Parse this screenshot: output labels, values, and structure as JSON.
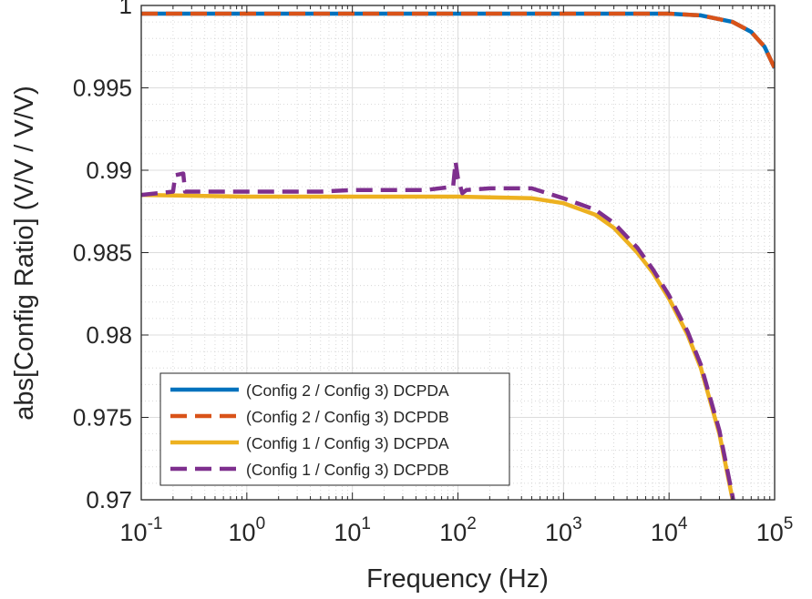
{
  "chart_data": {
    "type": "line",
    "title": "",
    "xlabel": "Frequency (Hz)",
    "ylabel": "abs[Config Ratio] (V/V / V/V)",
    "xscale": "log",
    "xlim": [
      0.1,
      100000
    ],
    "ylim": [
      0.97,
      1.0
    ],
    "grid": "on (major and minor)",
    "legend_position": "bottom-left",
    "x_ticks": [
      {
        "base": "10",
        "exp": "-1"
      },
      {
        "base": "10",
        "exp": "0"
      },
      {
        "base": "10",
        "exp": "1"
      },
      {
        "base": "10",
        "exp": "2"
      },
      {
        "base": "10",
        "exp": "3"
      },
      {
        "base": "10",
        "exp": "4"
      },
      {
        "base": "10",
        "exp": "5"
      }
    ],
    "y_ticks": [
      "0.97",
      "0.975",
      "0.98",
      "0.985",
      "0.99",
      "0.995",
      "1"
    ],
    "series": [
      {
        "name": "(Config 2 / Config 3) DCPDA",
        "color": "#0072BD",
        "dash": "solid",
        "x": [
          0.1,
          1,
          10,
          100,
          1000,
          5000,
          10000,
          20000,
          40000,
          60000,
          80000,
          100000
        ],
        "y": [
          0.9995,
          0.9995,
          0.9995,
          0.9995,
          0.9995,
          0.9995,
          0.9995,
          0.9994,
          0.999,
          0.9984,
          0.9975,
          0.9962
        ]
      },
      {
        "name": "(Config 2 / Config 3) DCPDB",
        "color": "#D95319",
        "dash": "dashed",
        "x": [
          0.1,
          1,
          10,
          100,
          1000,
          5000,
          10000,
          20000,
          40000,
          60000,
          80000,
          100000
        ],
        "y": [
          0.9995,
          0.9995,
          0.9995,
          0.9995,
          0.9995,
          0.9995,
          0.9995,
          0.9994,
          0.999,
          0.9984,
          0.9975,
          0.9962
        ]
      },
      {
        "name": "(Config 1 / Config 3) DCPDA",
        "color": "#EDB120",
        "dash": "solid",
        "x": [
          0.1,
          1,
          10,
          100,
          500,
          1000,
          2000,
          3000,
          5000,
          7000,
          10000,
          15000,
          20000,
          30000,
          40000,
          45000
        ],
        "y": [
          0.9885,
          0.9884,
          0.9884,
          0.9884,
          0.9883,
          0.988,
          0.9873,
          0.9865,
          0.985,
          0.9838,
          0.9822,
          0.98,
          0.978,
          0.974,
          0.97,
          0.968
        ]
      },
      {
        "name": "(Config 1 / Config 3) DCPDB",
        "color": "#7E2F8E",
        "dash": "dashed",
        "x": [
          0.1,
          0.2,
          0.21,
          0.25,
          0.26,
          0.5,
          1,
          5,
          10,
          50,
          90,
          95,
          100,
          110,
          120,
          200,
          500,
          1000,
          2000,
          3000,
          5000,
          7000,
          10000,
          15000,
          20000,
          30000,
          40000,
          45000
        ],
        "y": [
          0.9885,
          0.9887,
          0.9897,
          0.9898,
          0.9887,
          0.9887,
          0.9887,
          0.9887,
          0.9888,
          0.9888,
          0.989,
          0.9905,
          0.9895,
          0.9886,
          0.9888,
          0.9889,
          0.9889,
          0.9883,
          0.9876,
          0.9868,
          0.9853,
          0.984,
          0.9824,
          0.9802,
          0.9782,
          0.9742,
          0.9702,
          0.968
        ]
      }
    ]
  }
}
